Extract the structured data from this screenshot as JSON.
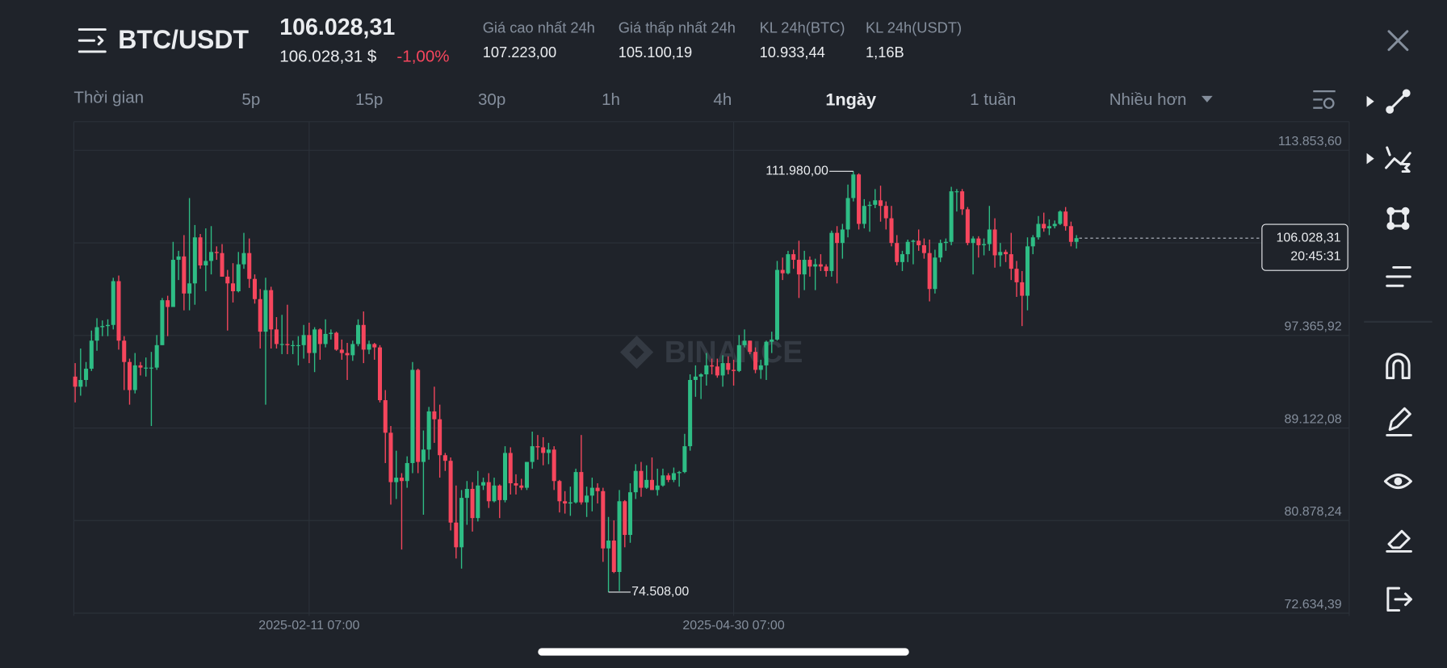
{
  "header": {
    "pair": "BTC/USDT",
    "price": "106.028,31",
    "price_usd": "106.028,31 $",
    "change": "-1,00%",
    "stats": [
      {
        "label": "Giá cao nhất 24h",
        "value": "107.223,00"
      },
      {
        "label": "Giá thấp nhất 24h",
        "value": "105.100,19"
      },
      {
        "label": "KL 24h(BTC)",
        "value": "10.933,44"
      },
      {
        "label": "KL 24h(USDT)",
        "value": "1,16B"
      }
    ]
  },
  "timeframes": [
    "Thời gian",
    "5p",
    "15p",
    "30p",
    "1h",
    "4h",
    "1ngày",
    "1 tuần",
    "Nhiều hơn"
  ],
  "chart_data": {
    "type": "candlestick",
    "watermark": "BINANCE",
    "high_label": "111.980,00",
    "low_label": "74.508,00",
    "last_price_label": "106.028,31",
    "countdown": "20:45:31",
    "up_color": "#2ebd85",
    "down_color": "#f6465d",
    "ylim": [
      72388,
      116399
    ],
    "yticks": [
      {
        "value": 113853.6,
        "label": "113.853,60"
      },
      {
        "value": 105609.76,
        "label": null
      },
      {
        "value": 97365.92,
        "label": "97.365,92"
      },
      {
        "value": 89122.08,
        "label": "89.122,08"
      },
      {
        "value": 80878.24,
        "label": "80.878,24"
      },
      {
        "value": 72634.39,
        "label": "72.634,39"
      }
    ],
    "categories": [
      null,
      null,
      null,
      null,
      null,
      null,
      null,
      null,
      null,
      null,
      null,
      null,
      null,
      null,
      null,
      null,
      null,
      null,
      null,
      null,
      null,
      null,
      null,
      null,
      null,
      null,
      null,
      null,
      null,
      null,
      null,
      null,
      null,
      null,
      null,
      null,
      null,
      null,
      null,
      null,
      null,
      null,
      null,
      "2025-02-11 07:00",
      null,
      null,
      null,
      null,
      null,
      null,
      null,
      null,
      null,
      null,
      null,
      null,
      null,
      null,
      null,
      null,
      null,
      null,
      null,
      null,
      null,
      null,
      null,
      null,
      null,
      null,
      null,
      null,
      null,
      null,
      null,
      null,
      null,
      null,
      null,
      null,
      null,
      null,
      null,
      null,
      null,
      null,
      null,
      null,
      null,
      null,
      null,
      null,
      null,
      null,
      null,
      null,
      null,
      null,
      null,
      null,
      null,
      null,
      null,
      null,
      null,
      null,
      null,
      null,
      null,
      null,
      null,
      null,
      null,
      null,
      null,
      null,
      null,
      null,
      null,
      null,
      null,
      "2025-04-30 07:00",
      null,
      null,
      null,
      null,
      null,
      null,
      null,
      null,
      null,
      null,
      null,
      null,
      null,
      null,
      null,
      null,
      null,
      null,
      null,
      null,
      null,
      null,
      null,
      null,
      null,
      null,
      null,
      null,
      null,
      null,
      null,
      null,
      null,
      null,
      null,
      null,
      null,
      null,
      null,
      null,
      null,
      null,
      null,
      null,
      null,
      null,
      null,
      null,
      null,
      null,
      null,
      null,
      null,
      null,
      null,
      null,
      null,
      null,
      null,
      null,
      null,
      null,
      null
    ],
    "values": [
      [
        93700,
        94900,
        91400,
        92800
      ],
      [
        92800,
        96200,
        92000,
        93400
      ],
      [
        93400,
        95000,
        92800,
        94400
      ],
      [
        94400,
        97800,
        94200,
        96900
      ],
      [
        96900,
        98900,
        96000,
        98100
      ],
      [
        98100,
        98700,
        97300,
        98200
      ],
      [
        98200,
        98800,
        97300,
        98300
      ],
      [
        98300,
        102500,
        97900,
        102200
      ],
      [
        102200,
        102700,
        96100,
        96900
      ],
      [
        96900,
        97300,
        92500,
        95000
      ],
      [
        95000,
        95300,
        91200,
        92500
      ],
      [
        92500,
        95800,
        92200,
        94700
      ],
      [
        94700,
        95000,
        93800,
        94500
      ],
      [
        94500,
        95400,
        93700,
        94500
      ],
      [
        94500,
        95900,
        89300,
        94500
      ],
      [
        94500,
        97400,
        94300,
        96500
      ],
      [
        96500,
        100700,
        96500,
        100500
      ],
      [
        100500,
        100900,
        97300,
        99900
      ],
      [
        99900,
        105700,
        99900,
        104100
      ],
      [
        104100,
        104900,
        102300,
        104400
      ],
      [
        104400,
        106300,
        99600,
        101100
      ],
      [
        101100,
        109600,
        99600,
        102000
      ],
      [
        102000,
        107200,
        100100,
        106100
      ],
      [
        106100,
        106400,
        103300,
        103600
      ],
      [
        103600,
        106900,
        101300,
        104000
      ],
      [
        104000,
        107100,
        102800,
        104800
      ],
      [
        104800,
        105300,
        104100,
        104700
      ],
      [
        104700,
        105500,
        102600,
        102600
      ],
      [
        102600,
        103200,
        97800,
        102000
      ],
      [
        102000,
        103800,
        100300,
        101300
      ],
      [
        101300,
        104800,
        101200,
        103700
      ],
      [
        103700,
        106500,
        103300,
        104700
      ],
      [
        104700,
        106000,
        101600,
        102400
      ],
      [
        102400,
        102800,
        100200,
        100600
      ],
      [
        100600,
        101500,
        96200,
        97700
      ],
      [
        97700,
        102500,
        91200,
        101400
      ],
      [
        101400,
        101700,
        96200,
        97900
      ],
      [
        97900,
        99000,
        96200,
        96600
      ],
      [
        96600,
        99200,
        95700,
        96600
      ],
      [
        96600,
        100100,
        95700,
        96500
      ],
      [
        96500,
        96900,
        95700,
        96500
      ],
      [
        96500,
        97300,
        94700,
        96500
      ],
      [
        96500,
        98300,
        95300,
        97400
      ],
      [
        97400,
        98500,
        94900,
        95800
      ],
      [
        95800,
        98100,
        94100,
        97900
      ],
      [
        97900,
        98000,
        95200,
        96600
      ],
      [
        96600,
        98800,
        96300,
        97500
      ],
      [
        97500,
        97900,
        97000,
        97600
      ],
      [
        97600,
        97700,
        96000,
        96100
      ],
      [
        96100,
        97000,
        95200,
        95800
      ],
      [
        95800,
        96700,
        93400,
        95600
      ],
      [
        95600,
        96900,
        95100,
        96600
      ],
      [
        96600,
        98800,
        96400,
        98300
      ],
      [
        98300,
        99500,
        94900,
        96100
      ],
      [
        96100,
        96900,
        95700,
        96600
      ],
      [
        96600,
        96700,
        95200,
        96300
      ],
      [
        96300,
        96500,
        91400,
        91600
      ],
      [
        91600,
        92500,
        86000,
        88700
      ],
      [
        88700,
        89300,
        82300,
        84300
      ],
      [
        84300,
        87100,
        82800,
        84700
      ],
      [
        84700,
        85100,
        78300,
        84400
      ],
      [
        84400,
        86600,
        83800,
        86000
      ],
      [
        86000,
        95000,
        85100,
        94300
      ],
      [
        94300,
        94400,
        85100,
        86100
      ],
      [
        86100,
        88900,
        81400,
        87200
      ],
      [
        87200,
        91000,
        86300,
        90600
      ],
      [
        90600,
        92800,
        87800,
        89900
      ],
      [
        89900,
        91200,
        84700,
        86700
      ],
      [
        86700,
        86900,
        85300,
        86200
      ],
      [
        86200,
        86500,
        80000,
        80700
      ],
      [
        80700,
        84000,
        77500,
        78500
      ],
      [
        78500,
        83600,
        76600,
        82900
      ],
      [
        82900,
        84400,
        80500,
        83700
      ],
      [
        83700,
        84300,
        79900,
        81100
      ],
      [
        81100,
        85300,
        80800,
        84000
      ],
      [
        84000,
        84700,
        83600,
        84300
      ],
      [
        84300,
        85100,
        82000,
        82600
      ],
      [
        82600,
        84700,
        82500,
        84000
      ],
      [
        84000,
        84100,
        81100,
        82700
      ],
      [
        82700,
        87500,
        82500,
        86900
      ],
      [
        86900,
        87400,
        83200,
        84200
      ],
      [
        84200,
        85000,
        83200,
        84000
      ],
      [
        84000,
        84600,
        83600,
        83800
      ],
      [
        83800,
        86100,
        83600,
        86100
      ],
      [
        86100,
        88800,
        85500,
        87500
      ],
      [
        87500,
        88500,
        86300,
        87400
      ],
      [
        87400,
        88300,
        85800,
        86900
      ],
      [
        86900,
        87800,
        85900,
        87200
      ],
      [
        87200,
        87500,
        83600,
        84400
      ],
      [
        84400,
        84500,
        81600,
        82600
      ],
      [
        82600,
        83500,
        81500,
        82400
      ],
      [
        82400,
        83900,
        81300,
        82500
      ],
      [
        82500,
        85500,
        82400,
        85200
      ],
      [
        85200,
        88500,
        82300,
        82500
      ],
      [
        82500,
        83900,
        81200,
        83100
      ],
      [
        83100,
        84700,
        81700,
        83800
      ],
      [
        83800,
        84200,
        82400,
        83500
      ],
      [
        83500,
        83800,
        77200,
        78400
      ],
      [
        78400,
        81200,
        74508,
        79100
      ],
      [
        79100,
        80900,
        76200,
        76300
      ],
      [
        76300,
        83600,
        74600,
        82600
      ],
      [
        82600,
        82700,
        78500,
        79600
      ],
      [
        79600,
        84200,
        78900,
        83400
      ],
      [
        83400,
        85900,
        82800,
        85300
      ],
      [
        85300,
        86100,
        83000,
        83800
      ],
      [
        83800,
        85800,
        83700,
        84500
      ],
      [
        84500,
        86500,
        83600,
        83600
      ],
      [
        83600,
        85500,
        83100,
        84000
      ],
      [
        84000,
        85500,
        83900,
        84900
      ],
      [
        84900,
        85100,
        84300,
        84500
      ],
      [
        84500,
        85600,
        84300,
        85100
      ],
      [
        85100,
        85300,
        83900,
        85200
      ],
      [
        85200,
        88600,
        85100,
        87500
      ],
      [
        87500,
        93900,
        87100,
        93400
      ],
      [
        93400,
        94700,
        91900,
        93700
      ],
      [
        93700,
        94000,
        91700,
        93900
      ],
      [
        93900,
        95800,
        92900,
        94700
      ],
      [
        94700,
        95300,
        93900,
        94600
      ],
      [
        94600,
        95300,
        93600,
        93800
      ],
      [
        93800,
        95600,
        92800,
        94900
      ],
      [
        94900,
        95500,
        93900,
        94300
      ],
      [
        94300,
        95200,
        92900,
        94200
      ],
      [
        94200,
        97400,
        94100,
        96500
      ],
      [
        96500,
        97900,
        96300,
        96900
      ],
      [
        96900,
        96900,
        95700,
        95900
      ],
      [
        95900,
        96300,
        94000,
        94300
      ],
      [
        94300,
        95200,
        93500,
        94700
      ],
      [
        94700,
        96900,
        93400,
        96800
      ],
      [
        96800,
        97700,
        95800,
        97000
      ],
      [
        97000,
        104000,
        96900,
        103200
      ],
      [
        103200,
        104300,
        102300,
        102900
      ],
      [
        102900,
        104900,
        102800,
        104600
      ],
      [
        104600,
        105000,
        103300,
        104100
      ],
      [
        104100,
        105800,
        100700,
        102800
      ],
      [
        102800,
        104900,
        101400,
        104100
      ],
      [
        104100,
        104400,
        102600,
        103500
      ],
      [
        103500,
        104200,
        101400,
        103700
      ],
      [
        103700,
        104600,
        103100,
        103500
      ],
      [
        103500,
        103700,
        102600,
        103100
      ],
      [
        103100,
        106700,
        102600,
        106500
      ],
      [
        106500,
        107100,
        102000,
        105600
      ],
      [
        105600,
        107300,
        104200,
        106800
      ],
      [
        106800,
        110800,
        106100,
        109600
      ],
      [
        109600,
        111980,
        109300,
        111700
      ],
      [
        111700,
        111800,
        106800,
        107300
      ],
      [
        107300,
        109500,
        106900,
        108900
      ],
      [
        108900,
        109300,
        106600,
        109000
      ],
      [
        109000,
        110400,
        108700,
        109400
      ],
      [
        109400,
        110700,
        107500,
        108900
      ],
      [
        108900,
        109300,
        106800,
        107800
      ],
      [
        107800,
        108900,
        105300,
        105600
      ],
      [
        105600,
        106300,
        103600,
        103900
      ],
      [
        103900,
        104900,
        103100,
        104600
      ],
      [
        104600,
        105900,
        103900,
        105700
      ],
      [
        105700,
        105900,
        103700,
        105800
      ],
      [
        105800,
        106800,
        104900,
        105400
      ],
      [
        105400,
        106000,
        104200,
        104700
      ],
      [
        104700,
        105900,
        100400,
        101500
      ],
      [
        101500,
        105000,
        101100,
        104300
      ],
      [
        104300,
        105900,
        103900,
        105600
      ],
      [
        105600,
        106000,
        104900,
        105700
      ],
      [
        105700,
        110600,
        105400,
        110200
      ],
      [
        110200,
        110400,
        108400,
        110200
      ],
      [
        110200,
        110400,
        108100,
        108600
      ],
      [
        108600,
        108800,
        105400,
        105600
      ],
      [
        105600,
        106200,
        102800,
        106000
      ],
      [
        106000,
        106200,
        104300,
        105400
      ],
      [
        105400,
        106000,
        104500,
        105500
      ],
      [
        105500,
        108900,
        104900,
        106800
      ],
      [
        106800,
        107800,
        103400,
        104500
      ],
      [
        104500,
        105600,
        103500,
        104800
      ],
      [
        104800,
        105000,
        103900,
        104600
      ],
      [
        104600,
        106500,
        102300,
        103300
      ],
      [
        103300,
        104000,
        100800,
        102100
      ],
      [
        102100,
        103100,
        98200,
        100900
      ],
      [
        100900,
        106100,
        99600,
        105300
      ],
      [
        105300,
        106300,
        104600,
        106100
      ],
      [
        106100,
        108000,
        105900,
        107300
      ],
      [
        107300,
        108300,
        106600,
        106900
      ],
      [
        106900,
        107700,
        106300,
        107100
      ],
      [
        107100,
        107600,
        106900,
        107300
      ],
      [
        107300,
        108500,
        107200,
        108400
      ],
      [
        108400,
        108800,
        106700,
        107100
      ],
      [
        107100,
        107500,
        105300,
        105700
      ],
      [
        105700,
        106300,
        105100,
        106028.31
      ]
    ]
  }
}
